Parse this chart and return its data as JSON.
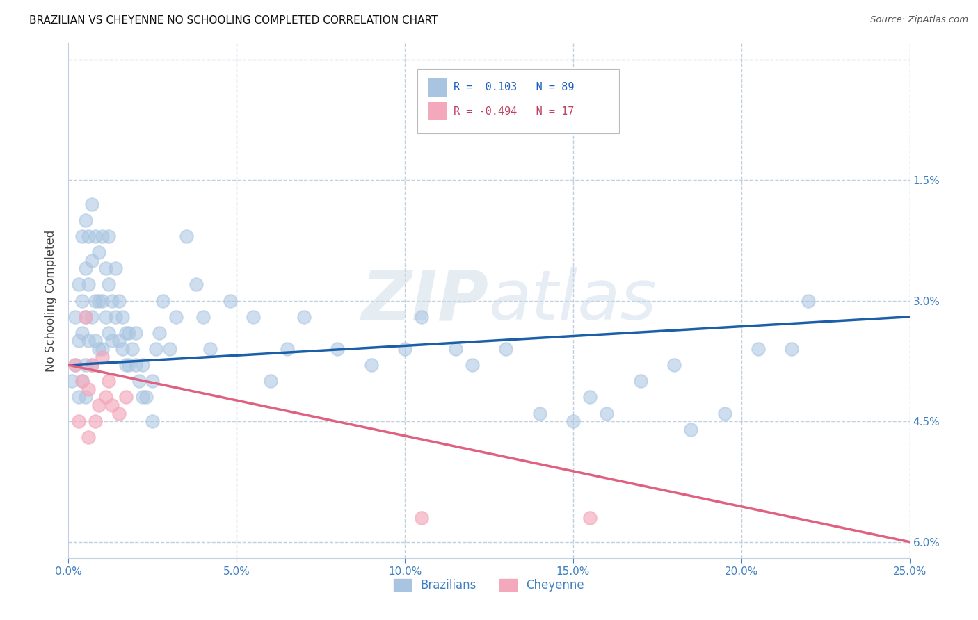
{
  "title": "BRAZILIAN VS CHEYENNE NO SCHOOLING COMPLETED CORRELATION CHART",
  "source": "Source: ZipAtlas.com",
  "xlabel_ticks": [
    "0.0%",
    "5.0%",
    "10.0%",
    "15.0%",
    "20.0%",
    "25.0%"
  ],
  "ylabel_ticks_right": [
    "6.0%",
    "4.5%",
    "3.0%",
    "1.5%",
    ""
  ],
  "xlim": [
    0.0,
    0.25
  ],
  "ylim": [
    -0.002,
    0.062
  ],
  "ylabel": "No Schooling Completed",
  "legend_labels": [
    "Brazilians",
    "Cheyenne"
  ],
  "watermark": "ZIPatlas",
  "blue_color": "#a8c4e0",
  "pink_color": "#f4a8bc",
  "blue_line_color": "#1a5fa8",
  "pink_line_color": "#e06080",
  "blue_r_color": "#2060c0",
  "pink_r_color": "#c04060",
  "background_color": "#ffffff",
  "grid_color": "#c0d0e0",
  "axis_tick_color": "#4080c0",
  "title_fontsize": 11,
  "brazilians_x": [
    0.001,
    0.002,
    0.002,
    0.003,
    0.003,
    0.003,
    0.004,
    0.004,
    0.004,
    0.004,
    0.005,
    0.005,
    0.005,
    0.005,
    0.005,
    0.006,
    0.006,
    0.006,
    0.007,
    0.007,
    0.007,
    0.007,
    0.008,
    0.008,
    0.008,
    0.009,
    0.009,
    0.009,
    0.01,
    0.01,
    0.01,
    0.011,
    0.011,
    0.012,
    0.012,
    0.012,
    0.013,
    0.013,
    0.014,
    0.014,
    0.015,
    0.015,
    0.016,
    0.016,
    0.017,
    0.017,
    0.018,
    0.018,
    0.019,
    0.02,
    0.02,
    0.021,
    0.022,
    0.022,
    0.023,
    0.025,
    0.025,
    0.026,
    0.027,
    0.028,
    0.03,
    0.032,
    0.035,
    0.038,
    0.04,
    0.042,
    0.048,
    0.055,
    0.06,
    0.065,
    0.07,
    0.08,
    0.09,
    0.1,
    0.105,
    0.115,
    0.12,
    0.13,
    0.14,
    0.15,
    0.155,
    0.16,
    0.17,
    0.18,
    0.185,
    0.195,
    0.205,
    0.215,
    0.22
  ],
  "brazilians_y": [
    0.02,
    0.022,
    0.028,
    0.018,
    0.025,
    0.032,
    0.02,
    0.026,
    0.03,
    0.038,
    0.018,
    0.022,
    0.028,
    0.034,
    0.04,
    0.025,
    0.032,
    0.038,
    0.022,
    0.028,
    0.035,
    0.042,
    0.025,
    0.03,
    0.038,
    0.024,
    0.03,
    0.036,
    0.024,
    0.03,
    0.038,
    0.028,
    0.034,
    0.026,
    0.032,
    0.038,
    0.025,
    0.03,
    0.028,
    0.034,
    0.025,
    0.03,
    0.024,
    0.028,
    0.022,
    0.026,
    0.022,
    0.026,
    0.024,
    0.022,
    0.026,
    0.02,
    0.018,
    0.022,
    0.018,
    0.015,
    0.02,
    0.024,
    0.026,
    0.03,
    0.024,
    0.028,
    0.038,
    0.032,
    0.028,
    0.024,
    0.03,
    0.028,
    0.02,
    0.024,
    0.028,
    0.024,
    0.022,
    0.024,
    0.028,
    0.024,
    0.022,
    0.024,
    0.016,
    0.015,
    0.018,
    0.016,
    0.02,
    0.022,
    0.014,
    0.016,
    0.024,
    0.024,
    0.03
  ],
  "cheyenne_x": [
    0.002,
    0.003,
    0.004,
    0.005,
    0.006,
    0.006,
    0.007,
    0.008,
    0.009,
    0.01,
    0.011,
    0.012,
    0.013,
    0.015,
    0.017,
    0.105,
    0.155
  ],
  "cheyenne_y": [
    0.022,
    0.015,
    0.02,
    0.028,
    0.013,
    0.019,
    0.022,
    0.015,
    0.017,
    0.023,
    0.018,
    0.02,
    0.017,
    0.016,
    0.018,
    0.003,
    0.003
  ],
  "blue_trend_x": [
    0.0,
    0.25
  ],
  "blue_trend_y": [
    0.022,
    0.028
  ],
  "pink_trend_x": [
    0.0,
    0.25
  ],
  "pink_trend_y": [
    0.022,
    0.0
  ]
}
